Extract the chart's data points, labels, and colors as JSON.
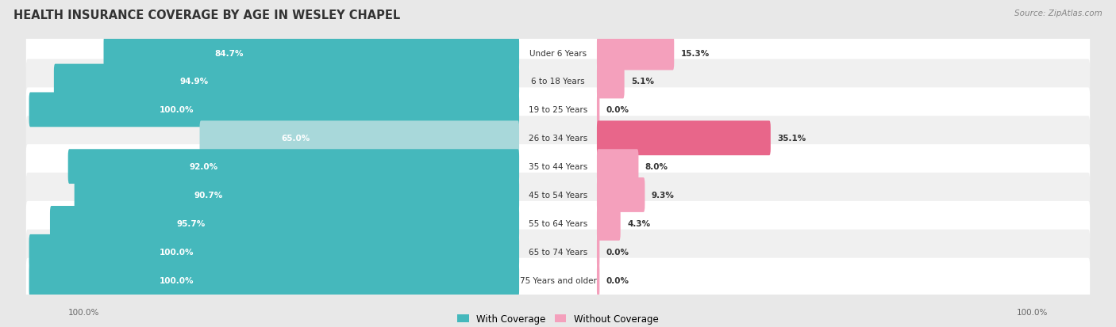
{
  "title": "HEALTH INSURANCE COVERAGE BY AGE IN WESLEY CHAPEL",
  "source": "Source: ZipAtlas.com",
  "categories": [
    "Under 6 Years",
    "6 to 18 Years",
    "19 to 25 Years",
    "26 to 34 Years",
    "35 to 44 Years",
    "45 to 54 Years",
    "55 to 64 Years",
    "65 to 74 Years",
    "75 Years and older"
  ],
  "with_coverage": [
    84.7,
    94.9,
    100.0,
    65.0,
    92.0,
    90.7,
    95.7,
    100.0,
    100.0
  ],
  "without_coverage": [
    15.3,
    5.1,
    0.0,
    35.1,
    8.0,
    9.3,
    4.3,
    0.0,
    0.0
  ],
  "color_with": "#45B8BC",
  "color_with_light": "#A8D8DA",
  "color_without_dark": "#E8668A",
  "color_without": "#F4A0BC",
  "color_without_light": "#F7C0D0",
  "bg_color": "#e8e8e8",
  "row_bg_even": "#ffffff",
  "row_bg_odd": "#f0f0f0",
  "title_fontsize": 10.5,
  "source_fontsize": 7.5,
  "label_fontsize": 7.5,
  "legend_fontsize": 8.5,
  "axis_label_fontsize": 7.5,
  "without_coverage_colors": [
    "#F4A0BC",
    "#F4A0BC",
    "#F4A0BC",
    "#E8668A",
    "#F4A0BC",
    "#F4A0BC",
    "#F4A0BC",
    "#F4A0BC",
    "#F4A0BC"
  ]
}
